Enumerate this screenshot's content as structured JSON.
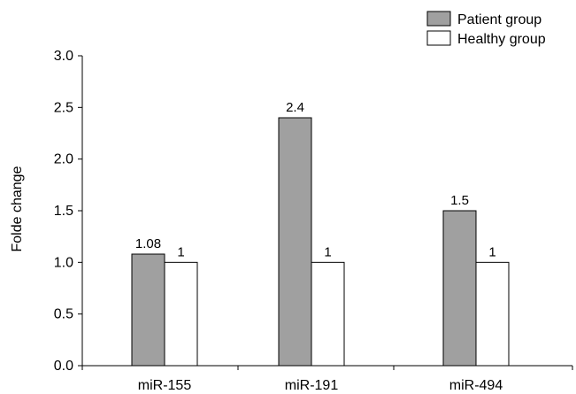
{
  "chart_data": {
    "type": "bar",
    "categories": [
      "miR-155",
      "miR-191",
      "miR-494"
    ],
    "series": [
      {
        "name": "Patient group",
        "values": [
          1.08,
          2.4,
          1.5
        ],
        "color": "#a0a0a0",
        "labels": [
          "1.08",
          "2.4",
          "1.5"
        ]
      },
      {
        "name": "Healthy group",
        "values": [
          1,
          1,
          1
        ],
        "color": "#ffffff",
        "labels": [
          "1",
          "1",
          "1"
        ]
      }
    ],
    "ylabel": "Folde change",
    "ylim": [
      0,
      3.0
    ],
    "yticks": [
      "0.0",
      "0.5",
      "1.0",
      "1.5",
      "2.0",
      "2.5",
      "3.0"
    ],
    "legend_position": "top-right",
    "grid": false
  }
}
